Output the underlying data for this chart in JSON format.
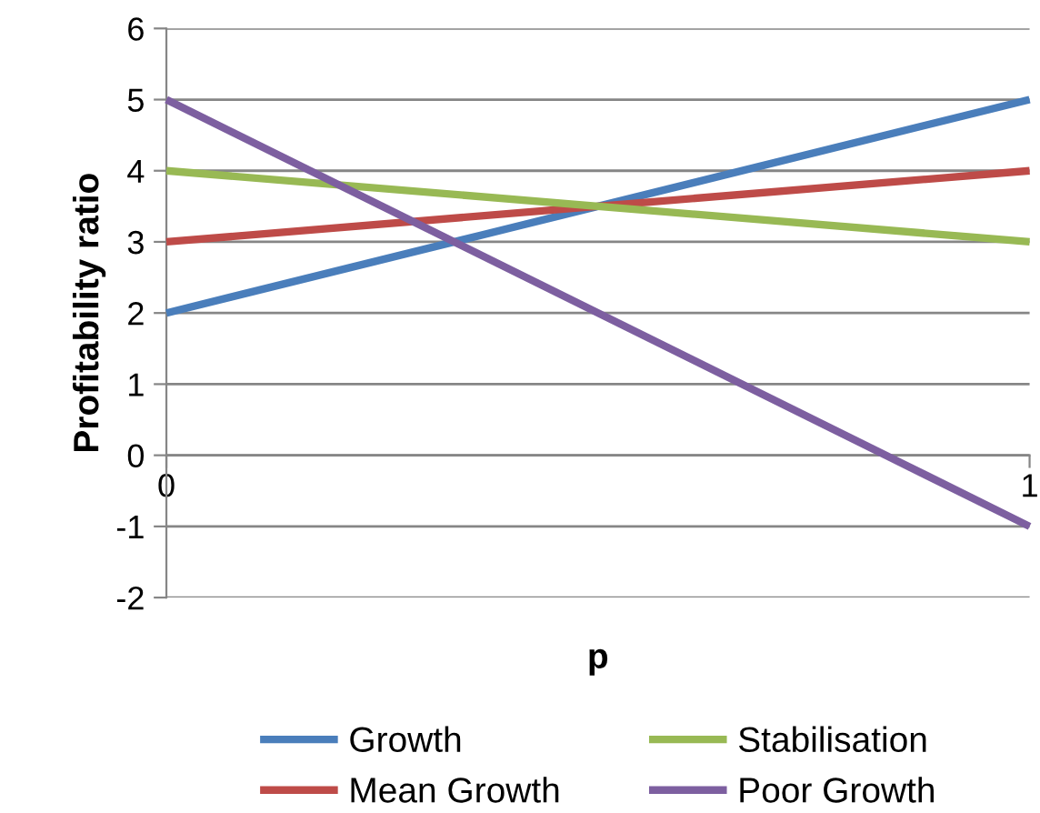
{
  "chart_data": {
    "type": "line",
    "xlabel": "p",
    "ylabel": "Profitability ratio",
    "x": [
      0,
      1
    ],
    "xlim": [
      0,
      1
    ],
    "xticks": [
      0,
      1
    ],
    "ylim": [
      -2,
      6
    ],
    "yticks": [
      -2,
      -1,
      0,
      1,
      2,
      3,
      4,
      5,
      6
    ],
    "grid": "y",
    "legend": "bottom",
    "marker": "none",
    "line_style": "solid",
    "series": [
      {
        "name": "Growth",
        "color": "#4a7ebb",
        "values": [
          2,
          5
        ]
      },
      {
        "name": "Mean Growth",
        "color": "#be4b48",
        "values": [
          3,
          4
        ]
      },
      {
        "name": "Stabilisation",
        "color": "#98b954",
        "values": [
          4,
          3
        ]
      },
      {
        "name": "Poor Growth",
        "color": "#7d5fa0",
        "values": [
          5,
          -1
        ]
      }
    ]
  }
}
